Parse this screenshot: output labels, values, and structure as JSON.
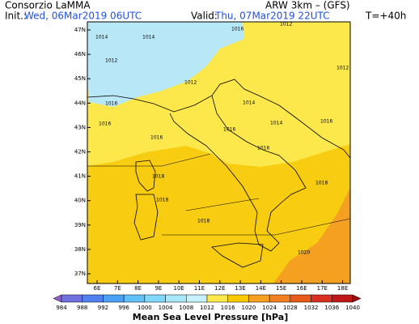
{
  "header": {
    "org": "Consorzio LaMMA",
    "model": "ARW 3km – (GFS)",
    "init_label": "Init.:",
    "init_time": "Wed, 06Mar2019 06UTC",
    "valid_label": "Valid:",
    "valid_time": "Thu, 07Mar2019 22UTC",
    "lead": "T=+40h"
  },
  "map": {
    "lat_labels": [
      "47N",
      "46N",
      "45N",
      "44N",
      "43N",
      "42N",
      "41N",
      "40N",
      "39N",
      "38N",
      "37N"
    ],
    "lon_labels": [
      "6E",
      "7E",
      "8E",
      "9E",
      "10E",
      "11E",
      "12E",
      "13E",
      "14E",
      "15E",
      "16E",
      "17E",
      "18E"
    ],
    "isobar_labels": [
      "1014",
      "1014",
      "1016",
      "1012",
      "1012",
      "1012",
      "1014",
      "1014",
      "1016",
      "1016",
      "1016",
      "1016",
      "1016",
      "1018",
      "1018",
      "1018",
      "1018",
      "1020",
      "1016",
      "1012"
    ]
  },
  "colorbar": {
    "ticks": [
      984,
      988,
      992,
      996,
      1000,
      1004,
      1008,
      1012,
      1016,
      1020,
      1024,
      1028,
      1032,
      1036,
      1040
    ],
    "colors": [
      "#9060d0",
      "#7070e0",
      "#5080f0",
      "#4aa0f5",
      "#60c0f8",
      "#80d8fa",
      "#a8e8fb",
      "#c8f2fb",
      "#fdea4a",
      "#f8c800",
      "#f5a020",
      "#f08020",
      "#e85a1a",
      "#d83020",
      "#c01818",
      "#a00c0c"
    ],
    "title": "Mean Sea Level Pressure [hPa]"
  }
}
